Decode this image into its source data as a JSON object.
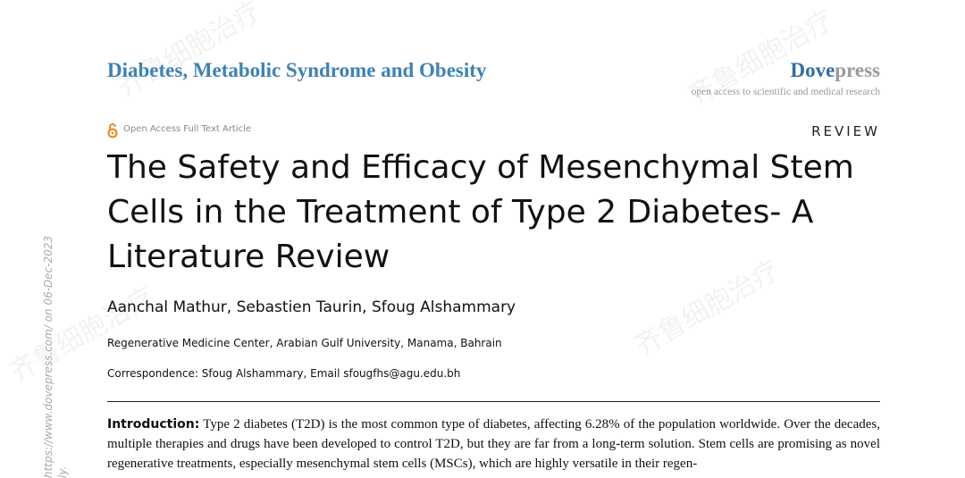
{
  "header": {
    "journal": "Diabetes, Metabolic Syndrome and Obesity",
    "publisher_a": "Dove",
    "publisher_b": "press",
    "tagline": "open access to scientific and medical research"
  },
  "article": {
    "access": "Open Access Full Text Article",
    "type": "REVIEW",
    "title": "The Safety and Efficacy of Mesenchymal Stem Cells in the Treatment of Type 2 Diabetes- A Literature Review",
    "authors": "Aanchal Mathur, Sebastien Taurin, Sfoug Alshammary",
    "affiliation": "Regenerative Medicine Center, Arabian Gulf University, Manama, Bahrain",
    "correspondence": "Correspondence: Sfoug Alshammary, Email sfougfhs@agu.edu.bh"
  },
  "abstract": {
    "heading": "Introduction:",
    "text": "Type 2 diabetes (T2D) is the most common type of diabetes, affecting 6.28% of the population worldwide. Over the decades, multiple therapies and drugs have been developed to control T2D, but they are far from a long-term solution. Stem cells are promising as novel regenerative treatments, especially mesenchymal stem cells (MSCs), which are highly versatile in their regen-"
  },
  "sidebar": {
    "download": "https://www.dovepress.com/ on 06-Dec-2023",
    "tail": "ly."
  },
  "watermark": "齐鲁细胞治疗"
}
